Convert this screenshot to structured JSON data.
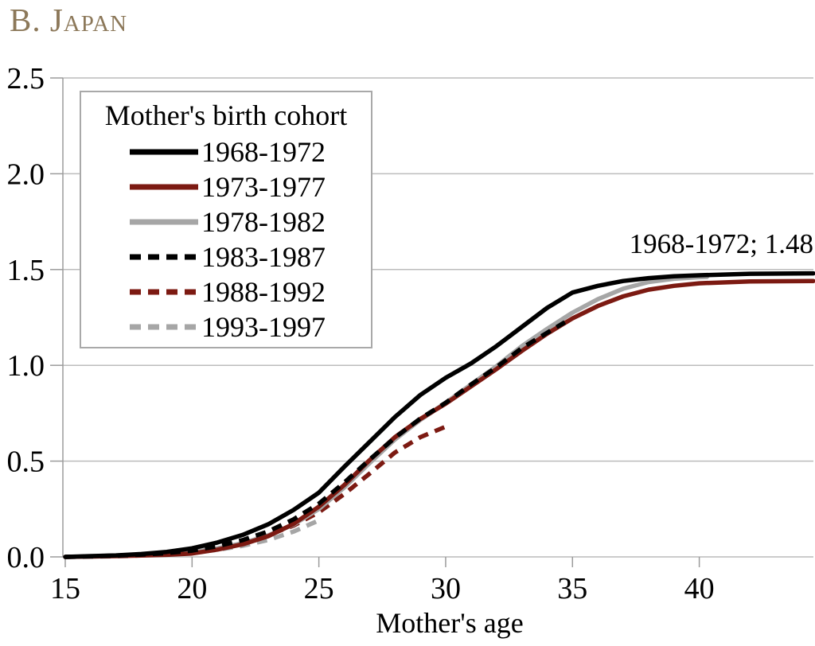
{
  "page": {
    "panel_title": "B. Japan",
    "title_color": "#8c7859"
  },
  "colors": {
    "black": "#000000",
    "dark_red": "#7c1a12",
    "gray": "#a6a6a6",
    "gridline": "#bcbcbc",
    "axis": "#9b9b9b"
  },
  "chart_data": {
    "type": "line",
    "title": "B. Japan",
    "xlabel": "Mother's age",
    "ylabel": "",
    "xlim": [
      15,
      44.5
    ],
    "ylim": [
      0,
      2.5
    ],
    "xticks": [
      15,
      20,
      25,
      30,
      35,
      40
    ],
    "yticks": [
      0,
      0.5,
      1,
      1.5,
      2,
      2.5
    ],
    "ytick_labels": [
      "0.0",
      "0.5",
      "1.0",
      "1.5",
      "2.0",
      "2.5"
    ],
    "grid": "horizontal",
    "legend_title": "Mother's birth cohort",
    "legend_position": "upper-left",
    "annotation": {
      "text": "1968-1972; 1.48",
      "x": 40.5,
      "y": 1.62
    },
    "series": [
      {
        "name": "1968-1972",
        "color": "#000000",
        "dash": false,
        "points": [
          [
            15,
            0
          ],
          [
            16,
            0.004
          ],
          [
            17,
            0.008
          ],
          [
            18,
            0.015
          ],
          [
            19,
            0.026
          ],
          [
            20,
            0.045
          ],
          [
            21,
            0.075
          ],
          [
            22,
            0.115
          ],
          [
            23,
            0.17
          ],
          [
            24,
            0.245
          ],
          [
            25,
            0.335
          ],
          [
            26,
            0.47
          ],
          [
            27,
            0.6
          ],
          [
            28,
            0.73
          ],
          [
            29,
            0.845
          ],
          [
            30,
            0.935
          ],
          [
            31,
            1.01
          ],
          [
            32,
            1.1
          ],
          [
            33,
            1.2
          ],
          [
            34,
            1.3
          ],
          [
            35,
            1.38
          ],
          [
            36,
            1.415
          ],
          [
            37,
            1.44
          ],
          [
            38,
            1.455
          ],
          [
            39,
            1.465
          ],
          [
            40,
            1.47
          ],
          [
            42,
            1.478
          ],
          [
            44.5,
            1.48
          ]
        ]
      },
      {
        "name": "1973-1977",
        "color": "#7c1a12",
        "dash": false,
        "points": [
          [
            15,
            0
          ],
          [
            16,
            0.002
          ],
          [
            17,
            0.004
          ],
          [
            18,
            0.007
          ],
          [
            19,
            0.011
          ],
          [
            20,
            0.018
          ],
          [
            21,
            0.038
          ],
          [
            22,
            0.066
          ],
          [
            23,
            0.108
          ],
          [
            24,
            0.172
          ],
          [
            25,
            0.262
          ],
          [
            26,
            0.375
          ],
          [
            27,
            0.505
          ],
          [
            28,
            0.625
          ],
          [
            29,
            0.72
          ],
          [
            30,
            0.8
          ],
          [
            31,
            0.89
          ],
          [
            32,
            0.98
          ],
          [
            33,
            1.075
          ],
          [
            34,
            1.165
          ],
          [
            35,
            1.245
          ],
          [
            36,
            1.31
          ],
          [
            37,
            1.36
          ],
          [
            38,
            1.395
          ],
          [
            39,
            1.415
          ],
          [
            40,
            1.428
          ],
          [
            42,
            1.438
          ],
          [
            44.5,
            1.44
          ]
        ]
      },
      {
        "name": "1978-1982",
        "color": "#a6a6a6",
        "dash": false,
        "points": [
          [
            15,
            0
          ],
          [
            16,
            0.002
          ],
          [
            17,
            0.005
          ],
          [
            18,
            0.009
          ],
          [
            19,
            0.014
          ],
          [
            20,
            0.025
          ],
          [
            21,
            0.045
          ],
          [
            22,
            0.072
          ],
          [
            23,
            0.112
          ],
          [
            24,
            0.168
          ],
          [
            25,
            0.25
          ],
          [
            26,
            0.362
          ],
          [
            27,
            0.49
          ],
          [
            28,
            0.613
          ],
          [
            29,
            0.715
          ],
          [
            30,
            0.805
          ],
          [
            31,
            0.9
          ],
          [
            32,
            0.995
          ],
          [
            33,
            1.1
          ],
          [
            34,
            1.19
          ],
          [
            35,
            1.275
          ],
          [
            36,
            1.345
          ],
          [
            37,
            1.4
          ],
          [
            38,
            1.435
          ],
          [
            39,
            1.452
          ],
          [
            40,
            1.46
          ],
          [
            40.3,
            1.462
          ]
        ]
      },
      {
        "name": "1983-1987",
        "color": "#000000",
        "dash": true,
        "points": [
          [
            15,
            0
          ],
          [
            16,
            0.003
          ],
          [
            17,
            0.007
          ],
          [
            18,
            0.012
          ],
          [
            19,
            0.02
          ],
          [
            20,
            0.033
          ],
          [
            21,
            0.056
          ],
          [
            22,
            0.088
          ],
          [
            23,
            0.133
          ],
          [
            24,
            0.196
          ],
          [
            25,
            0.278
          ],
          [
            26,
            0.388
          ],
          [
            27,
            0.508
          ],
          [
            28,
            0.622
          ],
          [
            29,
            0.722
          ],
          [
            30,
            0.805
          ],
          [
            31,
            0.9
          ],
          [
            32,
            0.99
          ],
          [
            33,
            1.09
          ],
          [
            34,
            1.17
          ],
          [
            34.7,
            1.225
          ]
        ]
      },
      {
        "name": "1988-1992",
        "color": "#7c1a12",
        "dash": true,
        "points": [
          [
            15,
            0
          ],
          [
            16,
            0.002
          ],
          [
            17,
            0.005
          ],
          [
            18,
            0.009
          ],
          [
            19,
            0.016
          ],
          [
            20,
            0.028
          ],
          [
            21,
            0.048
          ],
          [
            22,
            0.076
          ],
          [
            23,
            0.114
          ],
          [
            24,
            0.163
          ],
          [
            25,
            0.233
          ],
          [
            26,
            0.328
          ],
          [
            27,
            0.435
          ],
          [
            28,
            0.545
          ],
          [
            29,
            0.625
          ],
          [
            30,
            0.68
          ]
        ]
      },
      {
        "name": "1993-1997",
        "color": "#a6a6a6",
        "dash": true,
        "points": [
          [
            15,
            0
          ],
          [
            16,
            0.001
          ],
          [
            17,
            0.003
          ],
          [
            18,
            0.007
          ],
          [
            19,
            0.013
          ],
          [
            20,
            0.022
          ],
          [
            21,
            0.037
          ],
          [
            22,
            0.058
          ],
          [
            23,
            0.088
          ],
          [
            24,
            0.132
          ],
          [
            24.9,
            0.185
          ]
        ]
      }
    ]
  }
}
